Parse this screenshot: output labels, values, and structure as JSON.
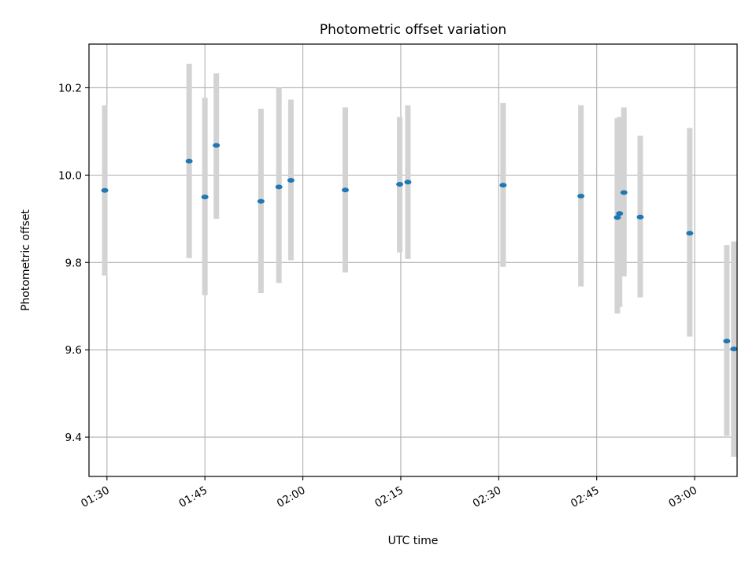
{
  "chart_data": {
    "type": "scatter",
    "title": "Photometric offset variation",
    "xlabel": "UTC time",
    "ylabel": "Photometric offset",
    "x_ticks": [
      "01:30",
      "01:45",
      "02:00",
      "02:15",
      "02:30",
      "02:45",
      "03:00"
    ],
    "y_ticks": [
      "9.4",
      "9.6",
      "9.8",
      "10.0",
      "10.2"
    ],
    "xlim": [
      "01:27:15",
      "03:06:30"
    ],
    "ylim": [
      9.31,
      10.3
    ],
    "grid": true,
    "point_color": "#1f77b4",
    "errorbar_color": "#d3d3d3",
    "points": [
      {
        "t": "01:29:40",
        "y": 9.965,
        "err_low": 9.77,
        "err_high": 10.16
      },
      {
        "t": "01:42:35",
        "y": 10.032,
        "err_low": 9.81,
        "err_high": 10.255
      },
      {
        "t": "01:45:00",
        "y": 9.95,
        "err_low": 9.725,
        "err_high": 10.177
      },
      {
        "t": "01:46:45",
        "y": 10.068,
        "err_low": 9.9,
        "err_high": 10.233
      },
      {
        "t": "01:53:35",
        "y": 9.94,
        "err_low": 9.73,
        "err_high": 10.152
      },
      {
        "t": "01:56:20",
        "y": 9.973,
        "err_low": 9.753,
        "err_high": 10.2
      },
      {
        "t": "01:58:10",
        "y": 9.988,
        "err_low": 9.805,
        "err_high": 10.173
      },
      {
        "t": "02:06:30",
        "y": 9.966,
        "err_low": 9.777,
        "err_high": 10.155
      },
      {
        "t": "02:14:50",
        "y": 9.979,
        "err_low": 9.823,
        "err_high": 10.133
      },
      {
        "t": "02:16:05",
        "y": 9.984,
        "err_low": 9.808,
        "err_high": 10.16
      },
      {
        "t": "02:30:40",
        "y": 9.977,
        "err_low": 9.79,
        "err_high": 10.165
      },
      {
        "t": "02:42:35",
        "y": 9.952,
        "err_low": 9.745,
        "err_high": 10.16
      },
      {
        "t": "02:48:10",
        "y": 9.903,
        "err_low": 9.683,
        "err_high": 10.13
      },
      {
        "t": "02:48:30",
        "y": 9.912,
        "err_low": 9.698,
        "err_high": 10.133
      },
      {
        "t": "02:49:10",
        "y": 9.96,
        "err_low": 9.768,
        "err_high": 10.155
      },
      {
        "t": "02:51:40",
        "y": 9.904,
        "err_low": 9.72,
        "err_high": 10.09
      },
      {
        "t": "02:59:15",
        "y": 9.867,
        "err_low": 9.63,
        "err_high": 10.108
      },
      {
        "t": "03:04:55",
        "y": 9.62,
        "err_low": 9.403,
        "err_high": 9.84
      },
      {
        "t": "03:06:00",
        "y": 9.602,
        "err_low": 9.355,
        "err_high": 9.848
      }
    ]
  }
}
